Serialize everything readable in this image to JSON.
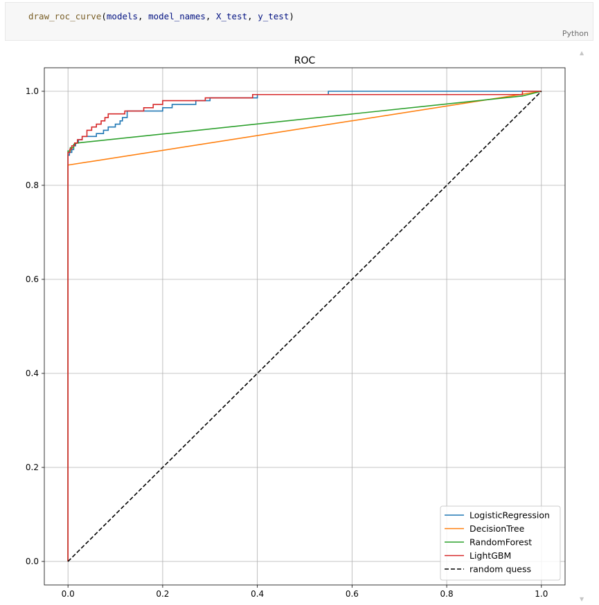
{
  "code_cell": {
    "fn": "draw_roc_curve",
    "open": "(",
    "args": [
      "models",
      "model_names",
      "X_test",
      "y_test"
    ],
    "sep": ", ",
    "close": ")",
    "language": "Python"
  },
  "scroll": {
    "up_icon": "▲",
    "down_icon": "▼"
  },
  "chart_data": {
    "type": "line",
    "title": "ROC",
    "xlabel": "",
    "ylabel": "",
    "xlim": [
      -0.05,
      1.05
    ],
    "ylim": [
      -0.05,
      1.05
    ],
    "xticks": [
      0.0,
      0.2,
      0.4,
      0.6,
      0.8,
      1.0
    ],
    "yticks": [
      0.0,
      0.2,
      0.4,
      0.6,
      0.8,
      1.0
    ],
    "tick_labels": [
      "0.0",
      "0.2",
      "0.4",
      "0.6",
      "0.8",
      "1.0"
    ],
    "grid": true,
    "legend_position": "lower-right",
    "series": [
      {
        "name": "LogisticRegression",
        "color": "#1f77b4",
        "style": "solid",
        "x": [
          0,
          0,
          0.003,
          0.003,
          0.008,
          0.008,
          0.012,
          0.012,
          0.016,
          0.016,
          0.022,
          0.022,
          0.03,
          0.03,
          0.06,
          0.06,
          0.075,
          0.075,
          0.085,
          0.085,
          0.1,
          0.1,
          0.11,
          0.11,
          0.115,
          0.115,
          0.125,
          0.125,
          0.2,
          0.2,
          0.22,
          0.22,
          0.27,
          0.27,
          0.3,
          0.3,
          0.4,
          0.4,
          0.55,
          0.55,
          0.97,
          0.97,
          1.0
        ],
        "y": [
          0,
          0.864,
          0.864,
          0.87,
          0.87,
          0.876,
          0.876,
          0.884,
          0.884,
          0.89,
          0.89,
          0.897,
          0.897,
          0.904,
          0.904,
          0.91,
          0.91,
          0.917,
          0.917,
          0.924,
          0.924,
          0.93,
          0.93,
          0.937,
          0.937,
          0.944,
          0.944,
          0.958,
          0.958,
          0.965,
          0.965,
          0.972,
          0.972,
          0.98,
          0.98,
          0.986,
          0.986,
          0.993,
          0.993,
          1.0,
          1.0,
          1.0,
          1.0
        ]
      },
      {
        "name": "DecisionTree",
        "color": "#ff7f0e",
        "style": "solid",
        "x": [
          0,
          0,
          1.0
        ],
        "y": [
          0,
          0.843,
          1.0
        ]
      },
      {
        "name": "RandomForest",
        "color": "#2ca02c",
        "style": "solid",
        "x": [
          0,
          0,
          0.005,
          0.005,
          0.012,
          0.012,
          0.02,
          0.96,
          1.0
        ],
        "y": [
          0,
          0.873,
          0.873,
          0.88,
          0.88,
          0.887,
          0.89,
          0.99,
          1.0
        ]
      },
      {
        "name": "LightGBM",
        "color": "#d62728",
        "style": "solid",
        "x": [
          0,
          0,
          0.004,
          0.004,
          0.008,
          0.008,
          0.014,
          0.014,
          0.02,
          0.02,
          0.03,
          0.03,
          0.04,
          0.04,
          0.05,
          0.05,
          0.06,
          0.06,
          0.07,
          0.07,
          0.078,
          0.078,
          0.085,
          0.085,
          0.12,
          0.12,
          0.16,
          0.16,
          0.18,
          0.18,
          0.2,
          0.2,
          0.29,
          0.29,
          0.39,
          0.39,
          0.96,
          0.96,
          1.0
        ],
        "y": [
          0,
          0.87,
          0.87,
          0.877,
          0.877,
          0.884,
          0.884,
          0.89,
          0.89,
          0.897,
          0.897,
          0.904,
          0.904,
          0.917,
          0.917,
          0.924,
          0.924,
          0.93,
          0.93,
          0.937,
          0.937,
          0.944,
          0.944,
          0.952,
          0.952,
          0.958,
          0.958,
          0.965,
          0.965,
          0.972,
          0.972,
          0.98,
          0.98,
          0.986,
          0.986,
          0.993,
          0.993,
          1.0,
          1.0
        ]
      },
      {
        "name": "random quess",
        "color": "#000000",
        "style": "dashed",
        "x": [
          0,
          1
        ],
        "y": [
          0,
          1
        ]
      }
    ]
  }
}
